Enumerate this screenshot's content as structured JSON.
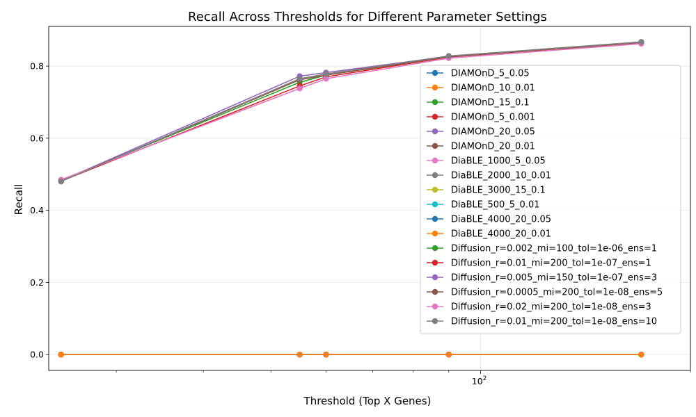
{
  "chart_data": {
    "type": "line",
    "title": "Recall Across Thresholds for Different Parameter Settings",
    "xlabel": "Threshold (Top X Genes)",
    "ylabel": "Recall",
    "x_scale": "log",
    "x_major_tick_label": "10",
    "x_major_tick_exponent": "2",
    "xlim": [
      24,
      200
    ],
    "ylim": [
      -0.044,
      0.91
    ],
    "y_ticks": [
      "0.0",
      "0.2",
      "0.4",
      "0.6",
      "0.8"
    ],
    "grid": true,
    "legend_position": "center-right",
    "x": [
      25,
      55,
      60,
      90,
      170
    ],
    "series": [
      {
        "name": "DIAMOnD_5_0.05",
        "color": "#1f77b4",
        "values": [
          0,
          0,
          0,
          0,
          0
        ]
      },
      {
        "name": "DIAMOnD_10_0.01",
        "color": "#ff7f0e",
        "values": [
          0,
          0,
          0,
          0,
          0
        ]
      },
      {
        "name": "DIAMOnD_15_0.1",
        "color": "#2ca02c",
        "values": [
          0,
          0,
          0,
          0,
          0
        ]
      },
      {
        "name": "DIAMOnD_5_0.001",
        "color": "#d62728",
        "values": [
          0,
          0,
          0,
          0,
          0
        ]
      },
      {
        "name": "DIAMOnD_20_0.05",
        "color": "#9467bd",
        "values": [
          0,
          0,
          0,
          0,
          0
        ]
      },
      {
        "name": "DIAMOnD_20_0.01",
        "color": "#8c564b",
        "values": [
          0,
          0,
          0,
          0,
          0
        ]
      },
      {
        "name": "DiaBLE_1000_5_0.05",
        "color": "#e377c2",
        "values": [
          0,
          0,
          0,
          0,
          0
        ]
      },
      {
        "name": "DiaBLE_2000_10_0.01",
        "color": "#7f7f7f",
        "values": [
          0,
          0,
          0,
          0,
          0
        ]
      },
      {
        "name": "DiaBLE_3000_15_0.1",
        "color": "#bcbd22",
        "values": [
          0,
          0,
          0,
          0,
          0
        ]
      },
      {
        "name": "DiaBLE_500_5_0.01",
        "color": "#17becf",
        "values": [
          0,
          0,
          0,
          0,
          0
        ]
      },
      {
        "name": "DiaBLE_4000_20_0.05",
        "color": "#1f77b4",
        "values": [
          0,
          0,
          0,
          0,
          0
        ]
      },
      {
        "name": "DiaBLE_4000_20_0.01",
        "color": "#ff7f0e",
        "values": [
          0,
          0,
          0,
          0,
          0
        ]
      },
      {
        "name": "Diffusion_r=0.002_mi=100_tol=1e-06_ens=1",
        "color": "#2ca02c",
        "values": [
          0.483,
          0.755,
          0.775,
          0.826,
          0.866
        ]
      },
      {
        "name": "Diffusion_r=0.01_mi=200_tol=1e-07_ens=1",
        "color": "#d62728",
        "values": [
          0.481,
          0.745,
          0.77,
          0.825,
          0.865
        ]
      },
      {
        "name": "Diffusion_r=0.005_mi=150_tol=1e-07_ens=3",
        "color": "#9467bd",
        "values": [
          0.482,
          0.772,
          0.782,
          0.827,
          0.866
        ]
      },
      {
        "name": "Diffusion_r=0.0005_mi=200_tol=1e-08_ens=5",
        "color": "#8c564b",
        "values": [
          0.481,
          0.762,
          0.775,
          0.826,
          0.865
        ]
      },
      {
        "name": "Diffusion_r=0.02_mi=200_tol=1e-08_ens=3",
        "color": "#e377c2",
        "values": [
          0.485,
          0.738,
          0.765,
          0.822,
          0.862
        ]
      },
      {
        "name": "Diffusion_r=0.01_mi=200_tol=1e-08_ens=10",
        "color": "#7f7f7f",
        "values": [
          0.48,
          0.765,
          0.778,
          0.828,
          0.867
        ]
      }
    ]
  }
}
